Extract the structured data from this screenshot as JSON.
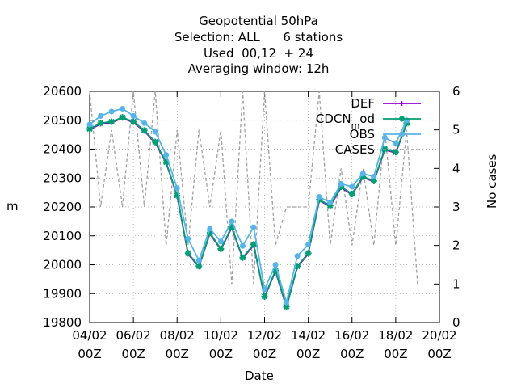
{
  "titles": [
    "Geopotential 50hPa",
    "Selection: ALL      6 stations",
    "Used  00,12  + 24",
    "Averaging window: 12h"
  ],
  "xlabel": "Date",
  "ylabel": "m",
  "y2label": "No cases",
  "colors": {
    "def": "#9400d3",
    "cdcn": "#009e73",
    "obs": "#56b4e9",
    "cases": "#a0a0a0"
  },
  "chart_data": {
    "type": "line",
    "x_tick_labels": [
      [
        "04/02",
        "00Z"
      ],
      [
        "06/02",
        "00Z"
      ],
      [
        "08/02",
        "00Z"
      ],
      [
        "10/02",
        "00Z"
      ],
      [
        "12/02",
        "00Z"
      ],
      [
        "14/02",
        "00Z"
      ],
      [
        "16/02",
        "00Z"
      ],
      [
        "18/02",
        "00Z"
      ],
      [
        "20/02",
        "00Z"
      ]
    ],
    "x": [
      "04/02 00Z",
      "04/02 12Z",
      "05/02 00Z",
      "05/02 12Z",
      "06/02 00Z",
      "06/02 12Z",
      "07/02 00Z",
      "07/02 12Z",
      "08/02 00Z",
      "08/02 12Z",
      "09/02 00Z",
      "09/02 12Z",
      "10/02 00Z",
      "10/02 12Z",
      "11/02 00Z",
      "11/02 12Z",
      "12/02 00Z",
      "12/02 12Z",
      "13/02 00Z",
      "13/02 12Z",
      "14/02 00Z",
      "14/02 12Z",
      "15/02 00Z",
      "15/02 12Z",
      "16/02 00Z",
      "16/02 12Z",
      "17/02 00Z",
      "17/02 12Z",
      "18/02 00Z",
      "18/02 12Z",
      "19/02 00Z"
    ],
    "ylim": [
      19800,
      20600
    ],
    "yticks": [
      19800,
      19900,
      20000,
      20100,
      20200,
      20300,
      20400,
      20500,
      20600
    ],
    "y2lim": [
      0,
      6
    ],
    "y2ticks": [
      0,
      1,
      2,
      3,
      4,
      5,
      6
    ],
    "grid": true,
    "legend_position": "top-right",
    "series": [
      {
        "name": "DEF",
        "axis": "y",
        "values": [
          20470,
          20490,
          20495,
          20510,
          20495,
          20465,
          20425,
          20355,
          20240,
          20040,
          19995,
          20110,
          20055,
          20130,
          20025,
          20070,
          19890,
          19980,
          19855,
          19995,
          20040,
          20225,
          20205,
          20270,
          20245,
          20305,
          20290,
          20400,
          20390,
          20490,
          null
        ]
      },
      {
        "name": "CDCN_mod",
        "axis": "y",
        "values": [
          20470,
          20490,
          20495,
          20510,
          20495,
          20465,
          20425,
          20355,
          20240,
          20040,
          19995,
          20110,
          20055,
          20130,
          20025,
          20070,
          19890,
          19980,
          19855,
          19995,
          20040,
          20225,
          20205,
          20270,
          20245,
          20305,
          20290,
          20400,
          20390,
          20490,
          null
        ]
      },
      {
        "name": "OBS",
        "axis": "y",
        "values": [
          20485,
          20515,
          20530,
          20540,
          20515,
          20490,
          20460,
          20380,
          20265,
          20090,
          20015,
          20125,
          20080,
          20150,
          20065,
          20130,
          19915,
          20000,
          19870,
          20030,
          20070,
          20235,
          20215,
          20280,
          20270,
          20315,
          20305,
          20440,
          20420,
          20500,
          null
        ]
      },
      {
        "name": "CASES",
        "axis": "y2",
        "values": [
          6,
          3,
          5,
          3,
          6,
          3,
          6,
          2,
          5,
          2,
          5,
          3,
          5,
          1,
          6,
          1,
          6,
          2,
          3,
          3,
          3,
          6,
          2,
          4,
          2,
          4,
          2,
          5,
          2,
          5,
          1
        ]
      }
    ]
  }
}
